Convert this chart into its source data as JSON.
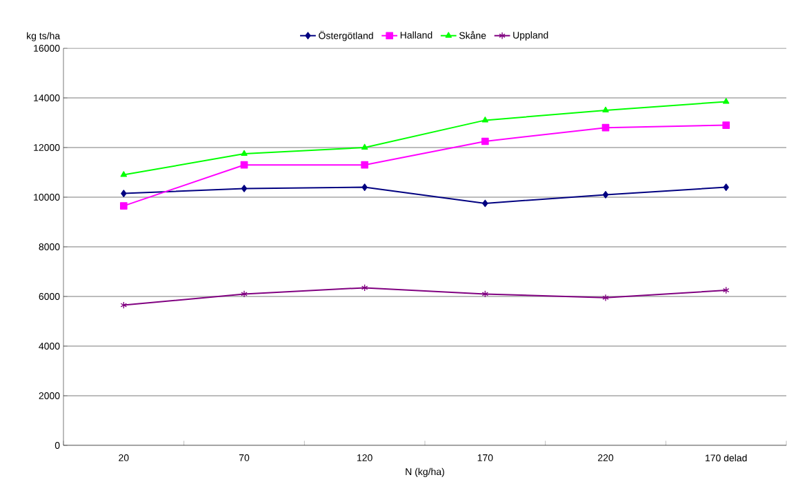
{
  "chart_data": {
    "type": "line",
    "xlabel": "N (kg/ha)",
    "ylabel": "kg ts/ha",
    "categories": [
      "20",
      "70",
      "120",
      "170",
      "220",
      "170 delad"
    ],
    "series": [
      {
        "name": "Östergötland",
        "color": "#000080",
        "marker": "diamond",
        "values": [
          10150,
          10350,
          10400,
          9750,
          10100,
          10400
        ]
      },
      {
        "name": "Halland",
        "color": "#ff00ff",
        "marker": "square",
        "values": [
          9650,
          11300,
          11300,
          12250,
          12800,
          12900
        ]
      },
      {
        "name": "Skåne",
        "color": "#00ff00",
        "marker": "triangle",
        "values": [
          10900,
          11750,
          12000,
          13100,
          13500,
          13850
        ]
      },
      {
        "name": "Uppland",
        "color": "#800080",
        "marker": "cross",
        "values": [
          5650,
          6100,
          6350,
          6100,
          5950,
          6250
        ]
      }
    ],
    "ylim": [
      0,
      16000
    ],
    "yticks": [
      0,
      2000,
      4000,
      6000,
      8000,
      10000,
      12000,
      14000,
      16000
    ],
    "grid": "y",
    "legend": "top"
  }
}
